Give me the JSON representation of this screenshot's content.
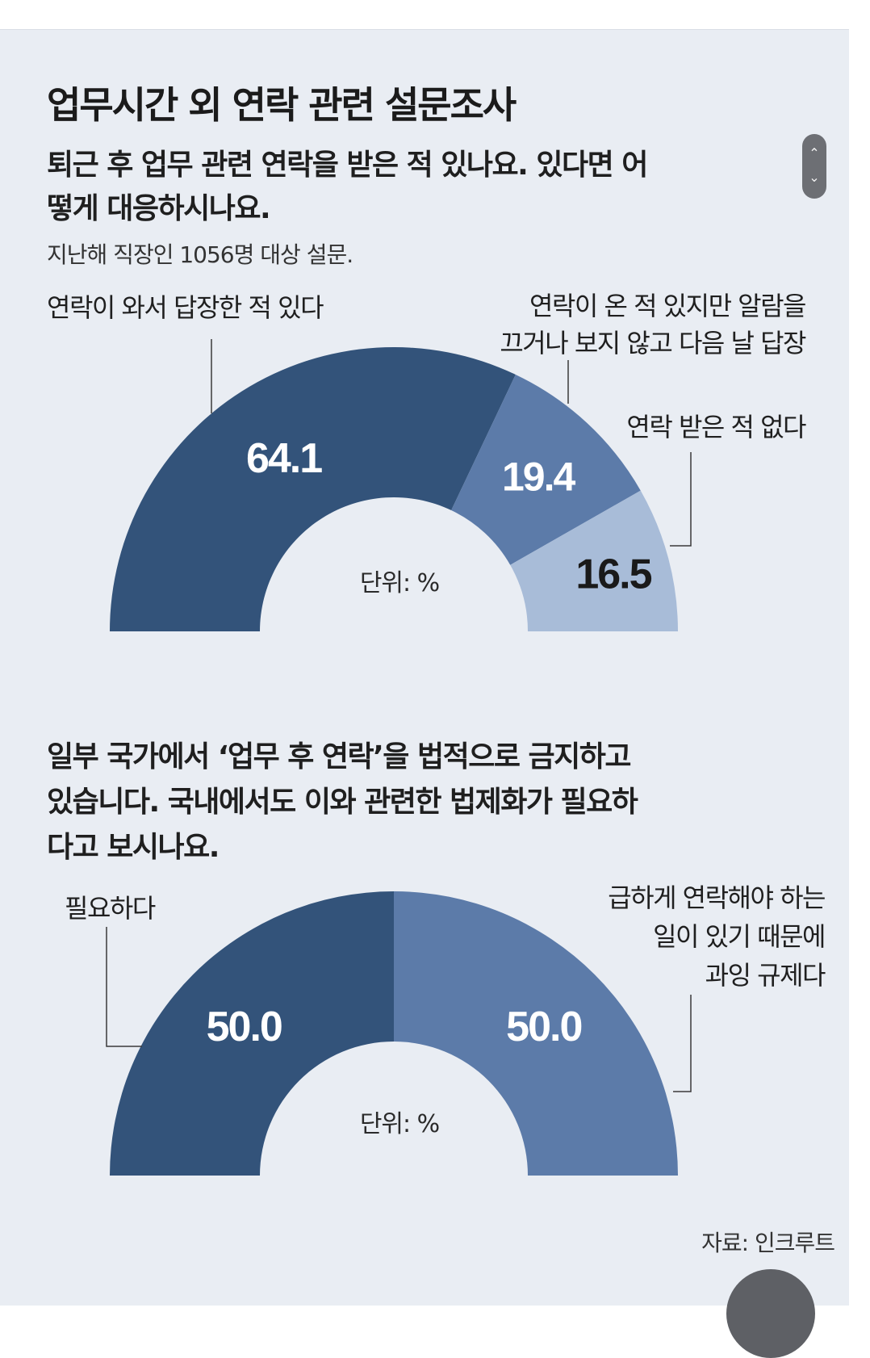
{
  "title": "업무시간 외 연락 관련 설문조사",
  "question1": "퇴근 후 업무 관련 연락을 받은 적 있나요. 있다면 어떻게 대응하시나요.",
  "note1": "지난해 직장인 1056명 대상 설문.",
  "question2": "일부 국가에서 ‘업무 후 연락’을 법적으로 금지하고 있습니다. 국내에서도 이와 관련한 법제화가 필요하다고 보시나요.",
  "source": "자료: 인크루트",
  "scroll": {
    "up_icon": "chevron-up-icon",
    "down_icon": "chevron-down-icon",
    "up": "⌃",
    "down": "⌄"
  },
  "chart_data": [
    {
      "type": "pie",
      "shape": "semi-donut",
      "unit_label": "단위: %",
      "categories": [
        "연락이 와서 답장한 적 있다",
        "연락이 온 적 있지만 알람을 끄거나 보지 않고 다음 날 답장",
        "연락 받은 적 없다"
      ],
      "label_lines": [
        [
          "연락이 와서 답장한 적 있다"
        ],
        [
          "연락이 온 적 있지만 알람을",
          "끄거나 보지 않고 다음 날 답장"
        ],
        [
          "연락 받은 적 없다"
        ]
      ],
      "values": [
        64.1,
        19.4,
        16.5
      ],
      "value_labels": [
        "64.1",
        "19.4",
        "16.5"
      ],
      "colors": [
        "#33537a",
        "#5c7ba9",
        "#a8bcd8"
      ],
      "value_colors": [
        "#ffffff",
        "#ffffff",
        "#1a1a1a"
      ]
    },
    {
      "type": "pie",
      "shape": "semi-donut",
      "unit_label": "단위: %",
      "categories": [
        "필요하다",
        "급하게 연락해야 하는 일이 있기 때문에 과잉 규제다"
      ],
      "label_lines": [
        [
          "필요하다"
        ],
        [
          "급하게 연락해야 하는",
          "일이 있기 때문에",
          "과잉 규제다"
        ]
      ],
      "values": [
        50.0,
        50.0
      ],
      "value_labels": [
        "50.0",
        "50.0"
      ],
      "colors": [
        "#33537a",
        "#5c7ba9"
      ],
      "value_colors": [
        "#ffffff",
        "#ffffff"
      ]
    }
  ]
}
